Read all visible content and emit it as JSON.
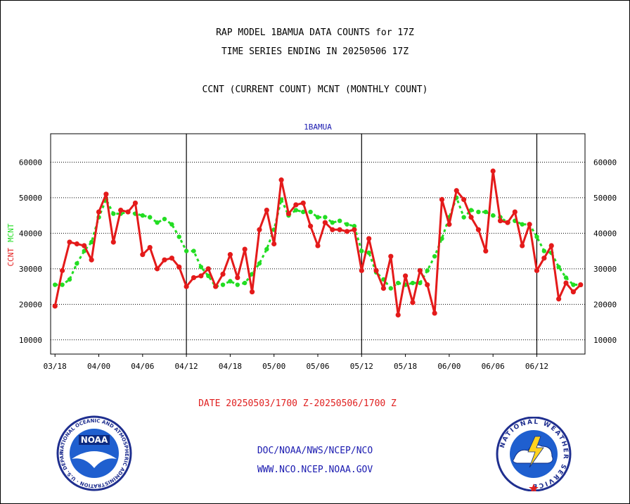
{
  "titles": {
    "line1": "RAP MODEL 1BAMUA DATA COUNTS for 17Z",
    "line2": "TIME SERIES ENDING IN 20250506 17Z",
    "line3": "CCNT (CURRENT COUNT) MCNT (MONTHLY COUNT)"
  },
  "date_range": "DATE 20250503/1700 Z-20250506/1700 Z",
  "credits": {
    "org": "DOC/NOAA/NWS/NCEP/NCO",
    "url": "WWW.NCO.NCEP.NOAA.GOV"
  },
  "logos": {
    "left": "NOAA",
    "left_ring_text": "NATIONAL OCEANIC AND ATMOSPHERIC ADMINISTRATION · U.S. DEPARTMENT OF COMMERCE",
    "right_ring_text": "NATIONAL WEATHER SERVICE"
  },
  "colors": {
    "ccnt": "#e41a1a",
    "mcnt": "#22dd22",
    "title": "#000000",
    "credits": "#1a1ab0",
    "station": "#1a1ab0",
    "date": "#e02020"
  },
  "chart_data": {
    "type": "line",
    "title": "1BAMUA",
    "ylabel_left": [
      "CCNT",
      "MCNT"
    ],
    "ylim": [
      6000,
      68000
    ],
    "yticks": [
      10000,
      20000,
      30000,
      40000,
      50000,
      60000
    ],
    "ytick_labels": [
      "10000",
      "20000",
      "30000",
      "40000",
      "50000",
      "60000"
    ],
    "xlim": [
      -0.5,
      60.5
    ],
    "xticks": [
      0,
      5,
      10,
      15,
      20,
      25,
      30,
      35,
      40,
      45,
      50,
      55
    ],
    "xtick_labels": [
      "03/18",
      "04/00",
      "04/06",
      "04/12",
      "04/18",
      "05/00",
      "05/06",
      "05/12",
      "05/18",
      "06/00",
      "06/06",
      "06/12"
    ],
    "day_boundaries": [
      15,
      35,
      55
    ],
    "grid": true,
    "series": [
      {
        "name": "CCNT",
        "values": [
          19500,
          29500,
          37500,
          37000,
          36500,
          32500,
          46000,
          51000,
          37500,
          46500,
          46000,
          48500,
          34000,
          36000,
          30000,
          32500,
          33000,
          30500,
          25000,
          27500,
          28000,
          30000,
          25000,
          28500,
          34000,
          27500,
          35500,
          23500,
          41000,
          46500,
          37000,
          55000,
          45500,
          48000,
          48500,
          42000,
          36500,
          43000,
          41000,
          41000,
          40500,
          41000,
          29500,
          38500,
          29500,
          24500,
          33500,
          17000,
          28000,
          20500,
          29500,
          25500,
          17500,
          49500,
          42500,
          52000,
          49500,
          44500,
          41000,
          35000,
          57500,
          43500,
          43000,
          46000,
          36500,
          42500,
          29500,
          33000,
          36500,
          21500,
          26000,
          23500,
          25500
        ]
      },
      {
        "name": "MCNT",
        "values": [
          25500,
          25500,
          27000,
          31500,
          35000,
          37500,
          44500,
          49500,
          45500,
          45500,
          46000,
          45500,
          45000,
          44500,
          43000,
          44000,
          42500,
          39000,
          35000,
          35000,
          30500,
          28000,
          25000,
          25500,
          26500,
          25500,
          26000,
          28500,
          31500,
          35500,
          41000,
          49500,
          45000,
          46500,
          46000,
          46000,
          44500,
          44500,
          43000,
          43500,
          42500,
          42000,
          35000,
          34500,
          29000,
          27000,
          24500,
          26000,
          25500,
          26000,
          26000,
          29500,
          33500,
          38500,
          44500,
          50000,
          44500,
          46500,
          46000,
          46000,
          45000,
          44500,
          43000,
          43500,
          42500,
          42500,
          39000,
          35000,
          34500,
          30500,
          27500,
          25500,
          25500
        ]
      }
    ]
  }
}
